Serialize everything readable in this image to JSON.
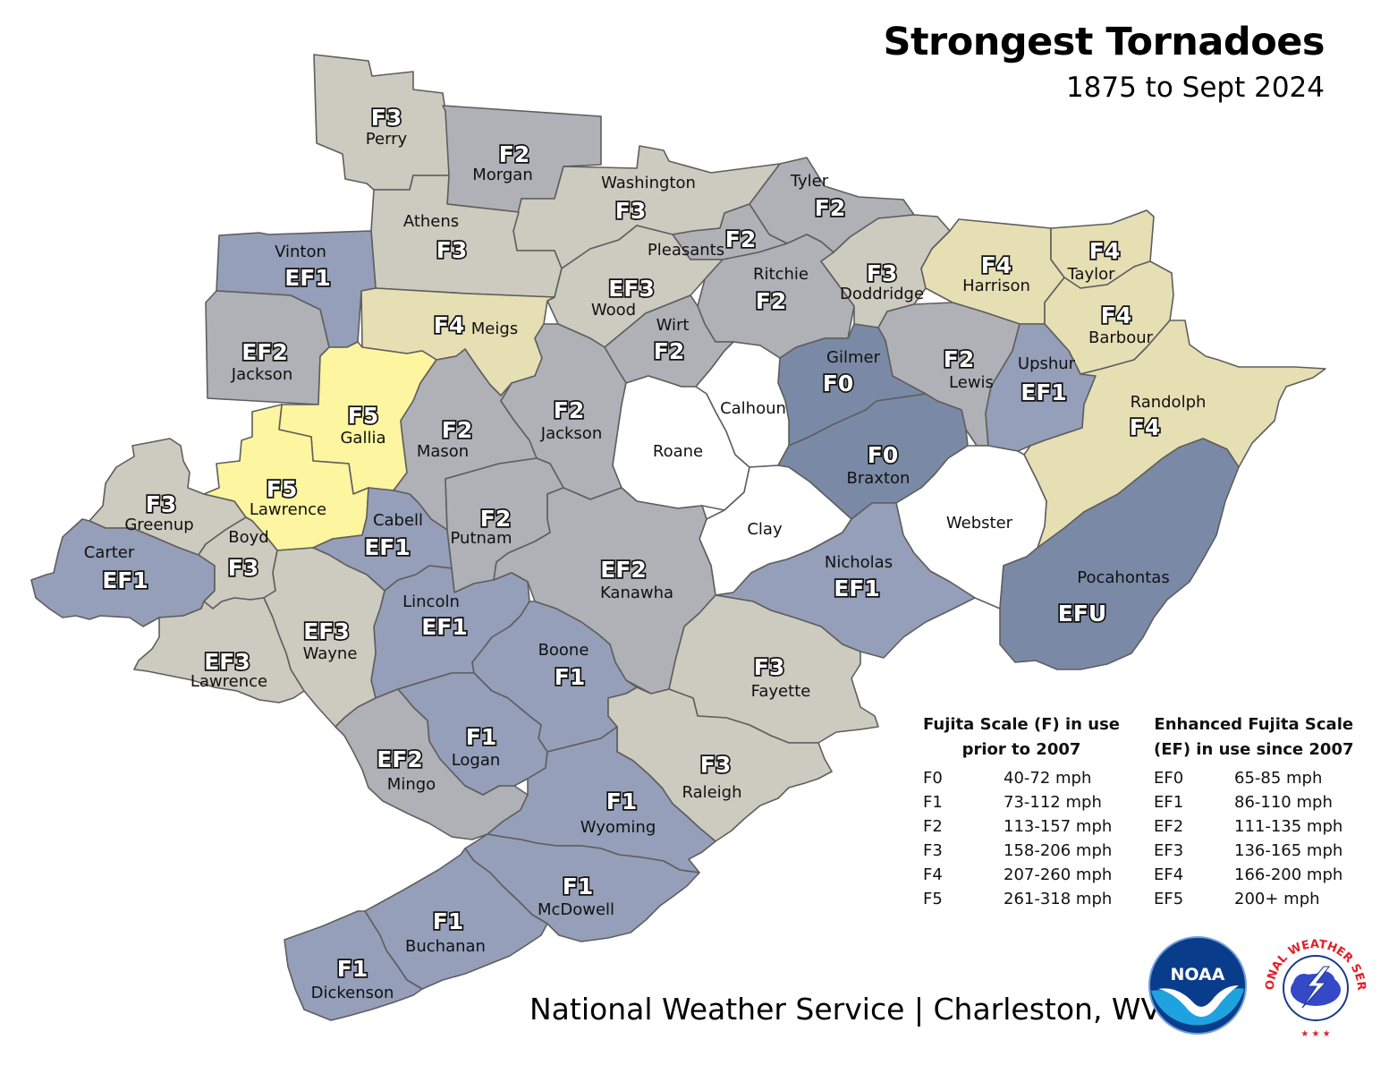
{
  "title": "Strongest Tornadoes",
  "subtitle": "1875 to Sept 2024",
  "footer": "National Weather Service | Charleston, WV",
  "colors": {
    "F0": "#7a8aa6",
    "EFU": "#7a8aa6",
    "F1": "#959fb9",
    "EF1": "#959fb9",
    "F2": "#b0b1b7",
    "EF2": "#b0b1b7",
    "F3": "#cdcbbf",
    "EF3": "#cdcbbf",
    "F4": "#e6dfb4",
    "F5": "#fdf59f",
    "none": "#ffffff"
  },
  "counties": [
    {
      "name": "Perry",
      "rating": "F3"
    },
    {
      "name": "Morgan",
      "rating": "F2"
    },
    {
      "name": "Washington",
      "rating": "F3"
    },
    {
      "name": "Athens",
      "rating": "F3"
    },
    {
      "name": "Vinton",
      "rating": "EF1"
    },
    {
      "name": "Tyler",
      "rating": "F2"
    },
    {
      "name": "Pleasants",
      "rating": "F2"
    },
    {
      "name": "Wood",
      "rating": "EF3"
    },
    {
      "name": "Ritchie",
      "rating": "F2"
    },
    {
      "name": "Doddridge",
      "rating": "F3"
    },
    {
      "name": "Harrison",
      "rating": "F4"
    },
    {
      "name": "Taylor",
      "rating": "F4"
    },
    {
      "name": "Barbour",
      "rating": "F4"
    },
    {
      "name": "Jackson",
      "rating": "EF2"
    },
    {
      "name": "Meigs",
      "rating": "F4"
    },
    {
      "name": "Wirt",
      "rating": "F2"
    },
    {
      "name": "Gilmer",
      "rating": "F0"
    },
    {
      "name": "Lewis",
      "rating": "F2"
    },
    {
      "name": "Upshur",
      "rating": "EF1"
    },
    {
      "name": "Randolph",
      "rating": "F4"
    },
    {
      "name": "Gallia",
      "rating": "F5"
    },
    {
      "name": "Mason",
      "rating": "F2"
    },
    {
      "name": "Jackson",
      "rating": "F2"
    },
    {
      "name": "Roane",
      "rating": ""
    },
    {
      "name": "Calhoun",
      "rating": ""
    },
    {
      "name": "Braxton",
      "rating": "F0"
    },
    {
      "name": "Greenup",
      "rating": "F3"
    },
    {
      "name": "Lawrence",
      "rating": "F5"
    },
    {
      "name": "Cabell",
      "rating": "EF1"
    },
    {
      "name": "Putnam",
      "rating": "F2"
    },
    {
      "name": "Clay",
      "rating": ""
    },
    {
      "name": "Webster",
      "rating": ""
    },
    {
      "name": "Carter",
      "rating": "EF1"
    },
    {
      "name": "Boyd",
      "rating": "F3"
    },
    {
      "name": "Kanawha",
      "rating": "EF2"
    },
    {
      "name": "Nicholas",
      "rating": "EF1"
    },
    {
      "name": "Pocahontas",
      "rating": "EFU"
    },
    {
      "name": "Lincoln",
      "rating": "EF1"
    },
    {
      "name": "Wayne",
      "rating": "EF3"
    },
    {
      "name": "Lawrence",
      "rating": "EF3"
    },
    {
      "name": "Boone",
      "rating": "F1"
    },
    {
      "name": "Fayette",
      "rating": "F3"
    },
    {
      "name": "Mingo",
      "rating": "EF2"
    },
    {
      "name": "Logan",
      "rating": "F1"
    },
    {
      "name": "Raleigh",
      "rating": "F3"
    },
    {
      "name": "Wyoming",
      "rating": "F1"
    },
    {
      "name": "McDowell",
      "rating": "F1"
    },
    {
      "name": "Buchanan",
      "rating": "F1"
    },
    {
      "name": "Dickenson",
      "rating": "F1"
    }
  ],
  "legend": {
    "fujita": {
      "heading_line1": "Fujita Scale (F) in use",
      "heading_line2": "prior to 2007",
      "rows": [
        {
          "k": "F0",
          "v": "40-72 mph"
        },
        {
          "k": "F1",
          "v": "73-112 mph"
        },
        {
          "k": "F2",
          "v": "113-157 mph"
        },
        {
          "k": "F3",
          "v": "158-206 mph"
        },
        {
          "k": "F4",
          "v": "207-260 mph"
        },
        {
          "k": "F5",
          "v": "261-318 mph"
        }
      ]
    },
    "enhanced": {
      "heading_line1": "Enhanced Fujita Scale",
      "heading_line2": "(EF) in use since 2007",
      "rows": [
        {
          "k": "EF0",
          "v": "65-85 mph"
        },
        {
          "k": "EF1",
          "v": "86-110 mph"
        },
        {
          "k": "EF2",
          "v": "111-135 mph"
        },
        {
          "k": "EF3",
          "v": "136-165 mph"
        },
        {
          "k": "EF4",
          "v": "166-200 mph"
        },
        {
          "k": "EF5",
          "v": "200+ mph"
        }
      ]
    }
  },
  "logos": {
    "noaa_text": "NOAA",
    "nws_text": "NATIONAL WEATHER SERVICE"
  }
}
